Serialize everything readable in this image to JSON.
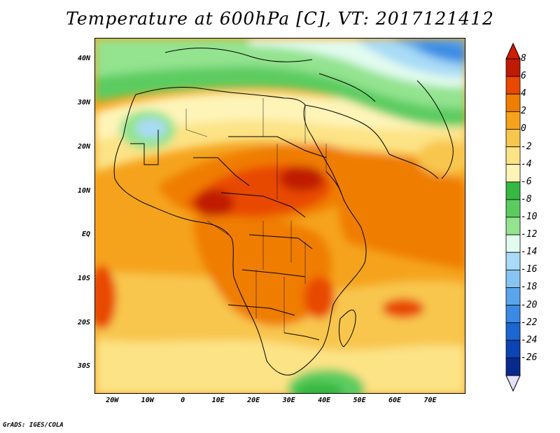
{
  "title": "Temperature at 600hPa [C], VT: 2017121412",
  "credit": "GrADS: IGES/COLA",
  "map": {
    "lon_range": [
      -25,
      80
    ],
    "lat_range": [
      -36,
      45
    ],
    "lat_ticks": [
      "40N",
      "30N",
      "20N",
      "10N",
      "EQ",
      "10S",
      "20S",
      "30S"
    ],
    "lat_values": [
      40,
      30,
      20,
      10,
      0,
      -10,
      -20,
      -30
    ],
    "lon_ticks": [
      "20W",
      "10W",
      "0",
      "10E",
      "20E",
      "30E",
      "40E",
      "50E",
      "60E",
      "70E"
    ],
    "lon_values": [
      -20,
      -10,
      0,
      10,
      20,
      30,
      40,
      50,
      60,
      70
    ]
  },
  "colorbar": {
    "labels": [
      "8",
      "6",
      "4",
      "2",
      "0",
      "-2",
      "-4",
      "-6",
      "-8",
      "-10",
      "-12",
      "-14",
      "-16",
      "-18",
      "-20",
      "-22",
      "-24",
      "-26"
    ],
    "colors": [
      "#c01a00",
      "#e84800",
      "#ef7d00",
      "#f5a31d",
      "#f8c64e",
      "#fce386",
      "#fef4b8",
      "#36b741",
      "#5ccc60",
      "#93e38f",
      "#e2fbef",
      "#a9dbf6",
      "#88c4f2",
      "#5aa5ec",
      "#3a8ae3",
      "#1b66d0",
      "#0b44b3",
      "#082a8c"
    ],
    "top_arrow_color": "#d01c00",
    "bottom_arrow_color": "#e4e0fa"
  }
}
